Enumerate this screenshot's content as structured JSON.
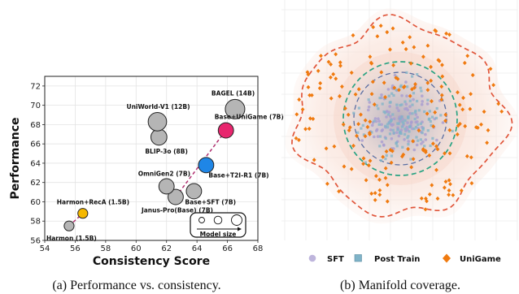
{
  "colors": {
    "gray_point": "#b5b5b5",
    "harmon_reca": "#f5b800",
    "unigame": "#e8266e",
    "t2i_r1": "#1f86e6",
    "dashed_line": "#b03070",
    "sft": "#a89cd0",
    "post_train": "#7fb3c8",
    "unigame_scatter": "#f07a0f",
    "outer_contour": "#e0553a",
    "mid_contour": "#2aa383",
    "inner_contour": "#5b6fa3"
  },
  "captions": {
    "a": "(a) Performance vs. consistency.",
    "b": "(b) Manifold coverage."
  },
  "chart_data": [
    {
      "type": "scatter",
      "xlabel": "Consistency Score",
      "ylabel": "Performance",
      "xlim": [
        54,
        68
      ],
      "ylim": [
        56,
        73
      ],
      "xticks": [
        54,
        56,
        58,
        60,
        62,
        64,
        66,
        68
      ],
      "yticks": [
        56,
        58,
        60,
        62,
        64,
        66,
        68,
        70,
        72
      ],
      "grid": true,
      "points": [
        {
          "label": "Harmon (1.5B)",
          "x": 55.6,
          "y": 57.5,
          "size": 1.5,
          "color": "gray"
        },
        {
          "label": "Harmon+RecA (1.5B)",
          "x": 56.5,
          "y": 58.8,
          "size": 1.5,
          "color": "harmon_reca"
        },
        {
          "label": "Janus-Pro(Base) (7B)",
          "x": 62.6,
          "y": 60.5,
          "size": 7,
          "color": "gray"
        },
        {
          "label": "Base+SFT (7B)",
          "x": 63.8,
          "y": 61.1,
          "size": 7,
          "color": "gray"
        },
        {
          "label": "OmniGen2 (7B)",
          "x": 62.0,
          "y": 61.6,
          "size": 7,
          "color": "gray"
        },
        {
          "label": "Base+T2I-R1 (7B)",
          "x": 64.6,
          "y": 63.8,
          "size": 7,
          "color": "t2i_r1"
        },
        {
          "label": "Base+UniGame (7B)",
          "x": 65.9,
          "y": 67.4,
          "size": 7,
          "color": "unigame"
        },
        {
          "label": "BLIP-3o (8B)",
          "x": 61.5,
          "y": 66.7,
          "size": 8,
          "color": "gray"
        },
        {
          "label": "UniWorld-V1 (12B)",
          "x": 61.4,
          "y": 68.3,
          "size": 12,
          "color": "gray"
        },
        {
          "label": "BAGEL (14B)",
          "x": 66.5,
          "y": 69.6,
          "size": 14,
          "color": "gray"
        }
      ],
      "arrows": [
        {
          "from": "Harmon (1.5B)",
          "to": "Harmon+RecA (1.5B)"
        },
        {
          "from": "Janus-Pro(Base) (7B)",
          "to": "Base+UniGame (7B)"
        }
      ],
      "size_legend_title": "Model size"
    },
    {
      "type": "scatter",
      "series": [
        {
          "name": "SFT",
          "marker": "circle",
          "color": "sft"
        },
        {
          "name": "Post Train",
          "marker": "square",
          "color": "post_train"
        },
        {
          "name": "UniGame",
          "marker": "diamond",
          "color": "unigame_scatter"
        }
      ],
      "legend_position": "bottom",
      "grid": true,
      "axes_visible": false
    }
  ]
}
